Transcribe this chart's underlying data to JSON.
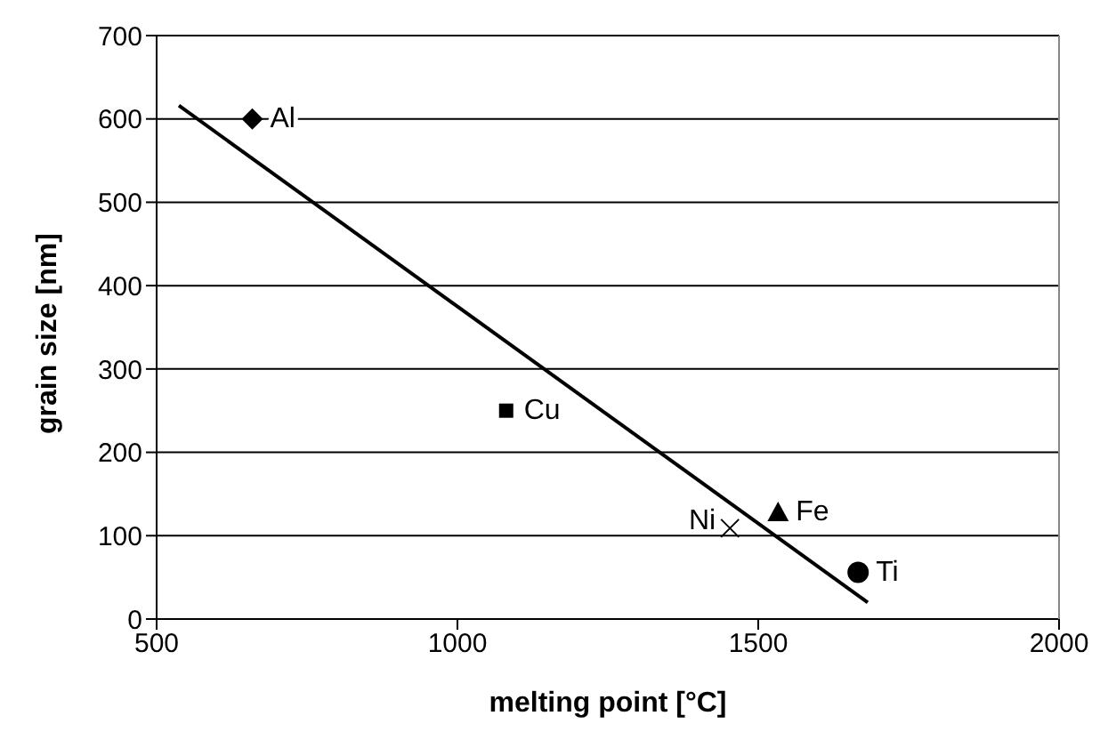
{
  "chart_data": {
    "type": "scatter",
    "xlabel": "melting point [°C]",
    "ylabel": "grain size [nm]",
    "xlim": [
      500,
      2000
    ],
    "xticks": [
      500,
      1000,
      1500,
      2000
    ],
    "ylim": [
      0,
      700
    ],
    "yticks": [
      0,
      100,
      200,
      300,
      400,
      500,
      600,
      700
    ],
    "grid": "y",
    "legend": false,
    "series": [
      {
        "name": "Al",
        "color": "#000000",
        "marker": "diamond",
        "x": [
          659
        ],
        "values": [
          600
        ]
      },
      {
        "name": "Cu",
        "color": "#000000",
        "marker": "square",
        "x": [
          1081
        ],
        "values": [
          250
        ]
      },
      {
        "name": "Ni",
        "color": "#000000",
        "marker": "cross",
        "x": [
          1453
        ],
        "values": [
          109
        ]
      },
      {
        "name": "Fe",
        "color": "#000000",
        "marker": "triangle",
        "x": [
          1533
        ],
        "values": [
          128
        ]
      },
      {
        "name": "Ti",
        "color": "#000000",
        "marker": "circle",
        "x": [
          1666
        ],
        "values": [
          56
        ]
      },
      {
        "type": "line",
        "color": "#000000",
        "marker": "none",
        "x": [
          537,
          1682
        ],
        "values": [
          616,
          20
        ]
      }
    ]
  }
}
